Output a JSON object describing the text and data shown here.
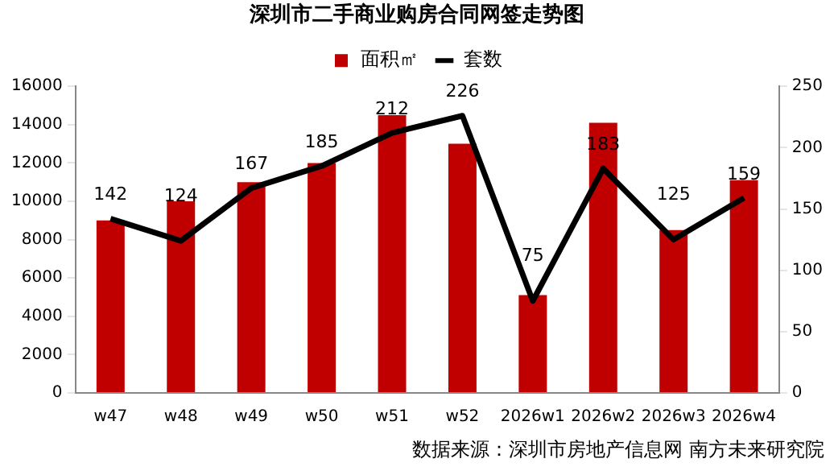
{
  "chart_data": {
    "type": "bar",
    "title": "深圳市二手商业购房合同网签走势图",
    "categories": [
      "w47",
      "w48",
      "w49",
      "w50",
      "w51",
      "w52",
      "2026w1",
      "2026w2",
      "2026w3",
      "2026w4"
    ],
    "series": [
      {
        "name": "面积㎡",
        "color": "#c00000",
        "values": [
          9000,
          10000,
          11000,
          12000,
          14500,
          13000,
          5100,
          14100,
          8500,
          11100
        ]
      },
      {
        "name": "套数",
        "type": "line",
        "axis": "y2",
        "color": "#000000",
        "values": [
          142,
          124,
          167,
          185,
          212,
          226,
          75,
          183,
          125,
          159
        ],
        "value_labels": [
          "142",
          "124",
          "167",
          "185",
          "212",
          "226",
          "75",
          "183",
          "125",
          "159"
        ]
      }
    ],
    "ylim": [
      0,
      16000
    ],
    "yticks": [
      0,
      2000,
      4000,
      6000,
      8000,
      10000,
      12000,
      14000,
      16000
    ],
    "y2lim": [
      0,
      250
    ],
    "y2ticks": [
      0,
      50,
      100,
      150,
      200,
      250
    ],
    "grid": false,
    "legend": "top",
    "marker": "none",
    "line_style": "solid",
    "annotations": [
      "数据来源：深圳市房地产信息网 南方未来研究院"
    ]
  }
}
